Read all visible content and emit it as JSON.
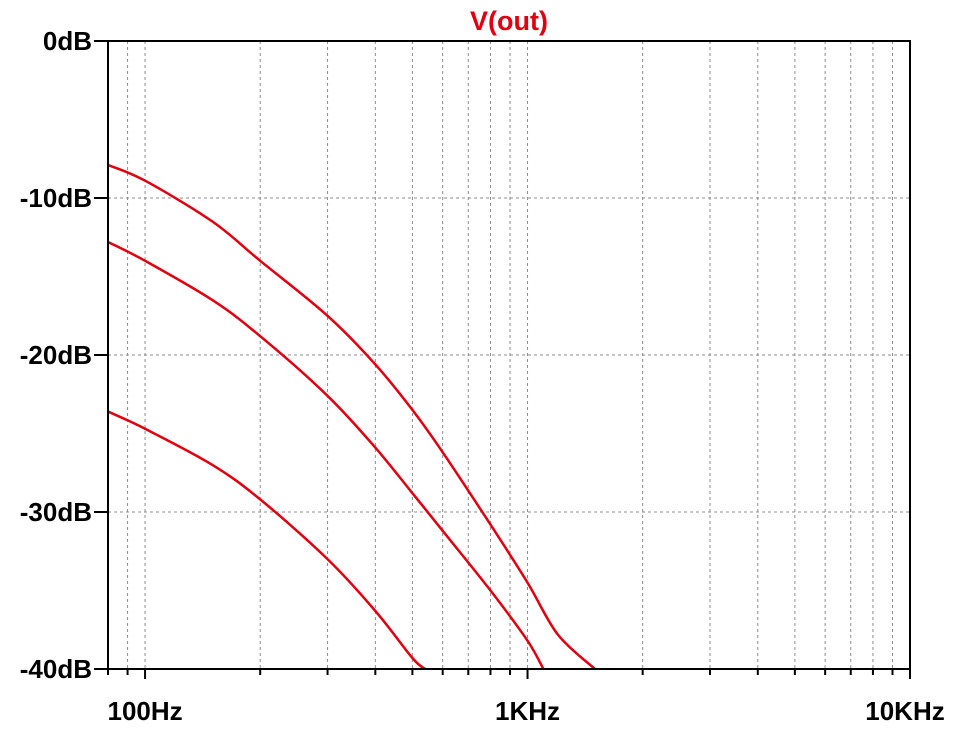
{
  "chart_data": {
    "type": "line",
    "title": "V(out)",
    "xlabel": "",
    "ylabel": "",
    "x_scale": "log",
    "xlim": [
      80,
      10000
    ],
    "ylim": [
      -40,
      0
    ],
    "x_ticks": [
      {
        "value": 100,
        "label": "100Hz"
      },
      {
        "value": 1000,
        "label": "1KHz"
      },
      {
        "value": 10000,
        "label": "10KHz"
      }
    ],
    "y_ticks": [
      {
        "value": 0,
        "label": "0dB"
      },
      {
        "value": -10,
        "label": "-10dB"
      },
      {
        "value": -20,
        "label": "-20dB"
      },
      {
        "value": -30,
        "label": "-30dB"
      },
      {
        "value": -40,
        "label": "-40dB"
      }
    ],
    "grid": true,
    "series": [
      {
        "color": "#e0000f",
        "points": [
          [
            80,
            -7.9
          ],
          [
            100,
            -8.9
          ],
          [
            150,
            -11.5
          ],
          [
            200,
            -14.0
          ],
          [
            300,
            -17.5
          ],
          [
            400,
            -20.6
          ],
          [
            500,
            -23.5
          ],
          [
            600,
            -26.2
          ],
          [
            800,
            -30.8
          ],
          [
            1000,
            -34.5
          ],
          [
            1200,
            -37.8
          ],
          [
            1500,
            -40
          ]
        ]
      },
      {
        "color": "#e0000f",
        "points": [
          [
            80,
            -12.8
          ],
          [
            100,
            -14.0
          ],
          [
            150,
            -16.5
          ],
          [
            200,
            -18.8
          ],
          [
            300,
            -22.6
          ],
          [
            400,
            -25.9
          ],
          [
            500,
            -28.8
          ],
          [
            600,
            -31.2
          ],
          [
            800,
            -35.0
          ],
          [
            1000,
            -38.2
          ],
          [
            1100,
            -40
          ]
        ]
      },
      {
        "color": "#e0000f",
        "points": [
          [
            80,
            -23.6
          ],
          [
            100,
            -24.7
          ],
          [
            150,
            -27.0
          ],
          [
            200,
            -29.2
          ],
          [
            300,
            -33.0
          ],
          [
            400,
            -36.3
          ],
          [
            500,
            -39.3
          ],
          [
            540,
            -40
          ]
        ]
      }
    ]
  }
}
